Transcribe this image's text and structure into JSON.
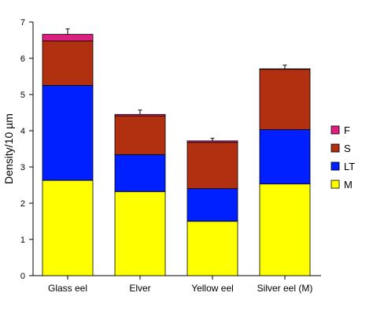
{
  "chart_data": {
    "type": "bar",
    "stacked": true,
    "ylabel": "Density/10 µm",
    "xlabel": "",
    "title": "",
    "ylim": [
      0,
      7
    ],
    "yticks": [
      0,
      1,
      2,
      3,
      4,
      5,
      6,
      7
    ],
    "categories": [
      "Glass eel",
      "Elver",
      "Yellow eel",
      "Silver eel (M)"
    ],
    "series": [
      {
        "name": "M",
        "color": "#ffff00",
        "values": [
          2.63,
          2.32,
          1.5,
          2.53
        ]
      },
      {
        "name": "LT",
        "color": "#0020ff",
        "values": [
          2.62,
          1.02,
          0.9,
          1.5
        ]
      },
      {
        "name": "S",
        "color": "#b03010",
        "values": [
          1.23,
          1.07,
          1.28,
          1.67
        ]
      },
      {
        "name": "F",
        "color": "#e02080",
        "values": [
          0.18,
          0.04,
          0.04,
          0.01
        ]
      }
    ],
    "error_bar_upper": [
      0.15,
      0.12,
      0.07,
      0.1
    ],
    "legend_order": [
      "F",
      "S",
      "LT",
      "M"
    ],
    "legend_position": "right",
    "grid": false
  }
}
